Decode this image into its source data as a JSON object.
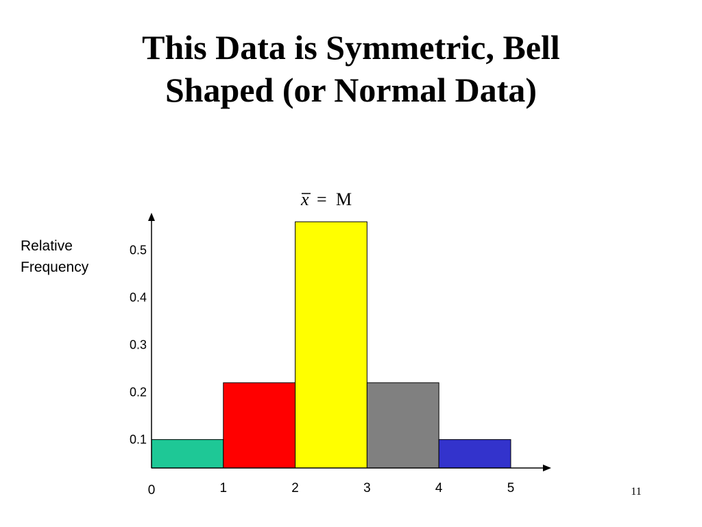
{
  "slide": {
    "title_line1": "This Data is Symmetric, Bell",
    "title_line2": "Shaped (or Normal Data)",
    "slide_number": "11"
  },
  "chart_data": {
    "type": "bar",
    "x": [
      0,
      1,
      2,
      3,
      4
    ],
    "bar_width": 1,
    "values": [
      0.06,
      0.18,
      0.52,
      0.18,
      0.06
    ],
    "bar_colors": [
      "#1ec896",
      "#ff0000",
      "#ffff00",
      "#808080",
      "#3333cc"
    ],
    "xticks": [
      "0",
      "1",
      "2",
      "3",
      "4",
      "5"
    ],
    "yticks": [
      "0.1",
      "0.2",
      "0.3",
      "0.4",
      "0.5"
    ],
    "ylabel": [
      "Relative",
      "Frequency"
    ],
    "annotation": {
      "x_bar": "x",
      "equals": "=",
      "rhs": "M"
    },
    "xlim": [
      0,
      5.7
    ],
    "ylim": [
      0,
      0.57
    ],
    "grid": false
  }
}
